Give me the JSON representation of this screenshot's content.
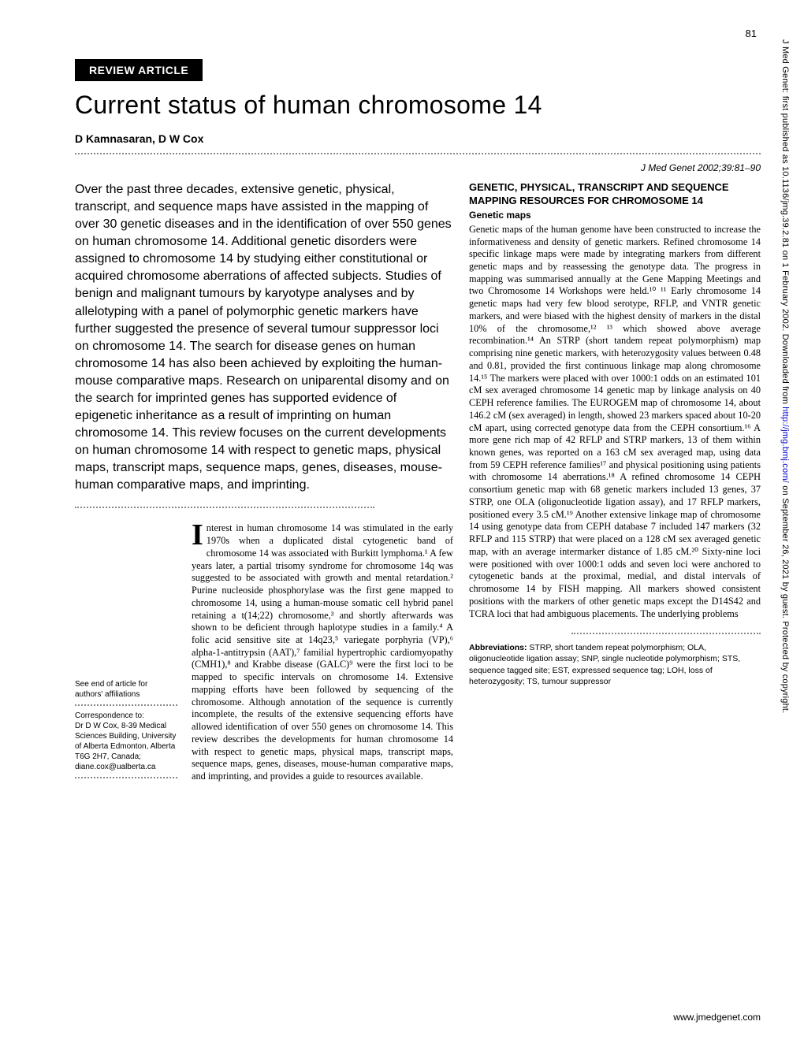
{
  "page_number": "81",
  "review_label": "REVIEW ARTICLE",
  "title": "Current status of human chromosome 14",
  "authors": "D Kamnasaran, D W Cox",
  "citation": "J Med Genet 2002;39:81–90",
  "abstract": "Over the past three decades, extensive genetic, physical, transcript, and sequence maps have assisted in the mapping of over 30 genetic diseases and in the identification of over 550 genes on human chromosome 14. Additional genetic disorders were assigned to chromosome 14 by studying either constitutional or acquired chromosome aberrations of affected subjects. Studies of benign and malignant tumours by karyotype analyses and by allelotyping with a panel of polymorphic genetic markers have further suggested the presence of several tumour suppressor loci on chromosome 14. The search for disease genes on human chromosome 14 has also been achieved by exploiting the human-mouse comparative maps. Research on uniparental disomy and on the search for imprinted genes has supported evidence of epigenetic inheritance as a result of imprinting on human chromosome 14. This review focuses on the current developments on human chromosome 14 with respect to genetic maps, physical maps, transcript maps, sequence maps, genes, diseases, mouse-human comparative maps, and imprinting.",
  "sidebar": {
    "see_article": "See end of article for authors' affiliations",
    "correspondence_label": "Correspondence to:",
    "correspondence_body": "Dr D W Cox, 8-39 Medical Sciences Building, University of Alberta Edmonton, Alberta T6G 2H7, Canada; diane.cox@ualberta.ca"
  },
  "body_col1": "nterest in human chromosome 14 was stimulated in the early 1970s when a duplicated distal cytogenetic band of chromosome 14 was associated with Burkitt lymphoma.¹ A few years later, a partial trisomy syndrome for chromosome 14q was suggested to be associated with growth and mental retardation.² Purine nucleoside phosphorylase was the first gene mapped to chromosome 14, using a human-mouse somatic cell hybrid panel retaining a t(14;22) chromosome,³ and shortly afterwards was shown to be deficient through haplotype studies in a family.⁴ A folic acid sensitive site at 14q23,⁵ variegate porphyria (VP),⁶ alpha-1-antitrypsin (AAT),⁷ familial hypertrophic cardiomyopathy (CMH1),⁸ and Krabbe disease (GALC)⁹ were the first loci to be mapped to specific intervals on chromosome 14. Extensive mapping efforts have been followed by sequencing of the chromosome. Although annotation of the sequence is currently incomplete, the results of the extensive sequencing efforts have allowed identification of over 550 genes on chromosome 14. This review describes the developments for human chromosome 14 with respect to genetic maps, physical maps, transcript maps, sequence maps, genes, diseases, mouse-human comparative maps, and imprinting, and provides a guide to resources available.",
  "right_section_heading": "GENETIC, PHYSICAL, TRANSCRIPT AND SEQUENCE MAPPING RESOURCES FOR CHROMOSOME 14",
  "right_sub_heading": "Genetic maps",
  "right_body": "Genetic maps of the human genome have been constructed to increase the informativeness and density of genetic markers. Refined chromosome 14 specific linkage maps were made by integrating markers from different genetic maps and by reassessing the genotype data. The progress in mapping was summarised annually at the Gene Mapping Meetings and two Chromosome 14 Workshops were held.¹⁰ ¹¹ Early chromosome 14 genetic maps had very few blood serotype, RFLP, and VNTR genetic markers, and were biased with the highest density of markers in the distal 10% of the chromosome,¹² ¹³ which showed above average recombination.¹⁴ An STRP (short tandem repeat polymorphism) map comprising nine genetic markers, with heterozygosity values between 0.48 and 0.81, provided the first continuous linkage map along chromosome 14.¹⁵ The markers were placed with over 1000:1 odds on an estimated 101 cM sex averaged chromosome 14 genetic map by linkage analysis on 40 CEPH reference families. The EUROGEM map of chromosome 14, about 146.2 cM (sex averaged) in length, showed 23 markers spaced about 10-20 cM apart, using corrected genotype data from the CEPH consortium.¹⁶ A more gene rich map of 42 RFLP and STRP markers, 13 of them within known genes, was reported on a 163 cM sex averaged map, using data from 59 CEPH reference families¹⁷ and physical positioning using patients with chromosome 14 aberrations.¹⁸ A refined chromosome 14 CEPH consortium genetic map with 68 genetic markers included 13 genes, 37 STRP, one OLA (oligonucleotide ligation assay), and 17 RFLP markers, positioned every 3.5 cM.¹⁹ Another extensive linkage map of chromosome 14 using genotype data from CEPH database 7 included 147 markers (32 RFLP and 115 STRP) that were placed on a 128 cM sex averaged genetic map, with an average intermarker distance of 1.85 cM.²⁰ Sixty-nine loci were positioned with over 1000:1 odds and seven loci were anchored to cytogenetic bands at the proximal, medial, and distal intervals of chromosome 14 by FISH mapping. All markers showed consistent positions with the markers of other genetic maps except the D14S42 and TCRA loci that had ambiguous placements. The underlying problems",
  "abbreviations_label": "Abbreviations:",
  "abbreviations_text": " STRP, short tandem repeat polymorphism; OLA, oligonucleotide ligation assay; SNP, single nucleotide polymorphism; STS, sequence tagged site; EST, expressed sequence tag; LOH, loss of heterozygosity; TS, tumour suppressor",
  "footer_url": "www.jmedgenet.com",
  "vertical_pre": "J Med Genet: first published as 10.1136/jmg.39.2.81 on 1 February 2002. Downloaded from ",
  "vertical_link": "http://jmg.bmj.com/",
  "vertical_post": " on September 26, 2021 by guest. Protected by copyright.",
  "colors": {
    "background": "#ffffff",
    "text": "#000000",
    "badge_bg": "#000000",
    "badge_fg": "#ffffff",
    "link": "#0000cc",
    "dotted": "#888888"
  }
}
